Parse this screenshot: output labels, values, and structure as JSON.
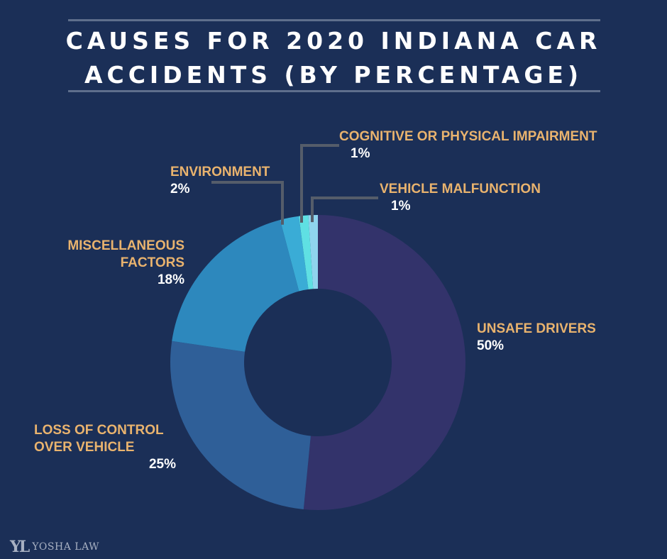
{
  "title": "CAUSES FOR 2020 INDIANA CAR ACCIDENTS (BY PERCENTAGE)",
  "logo": {
    "mark": "YL",
    "text": "YOSHA LAW"
  },
  "chart_data": {
    "type": "pie",
    "title": "CAUSES FOR 2020 INDIANA CAR ACCIDENTS (BY PERCENTAGE)",
    "donut": true,
    "start": "12 o'clock, clockwise",
    "slices": [
      {
        "id": "unsafe",
        "label": "UNSAFE DRIVERS",
        "value": 50,
        "value_label": "50%",
        "color": "#33336b"
      },
      {
        "id": "loss",
        "label": "LOSS OF CONTROL OVER VEHICLE",
        "value": 25,
        "value_label": "25%",
        "color": "#2f5f98"
      },
      {
        "id": "misc",
        "label": "MISCELLANEOUS FACTORS",
        "value": 18,
        "value_label": "18%",
        "color": "#2d88bd"
      },
      {
        "id": "env",
        "label": "ENVIRONMENT",
        "value": 2,
        "value_label": "2%",
        "color": "#3aacd6"
      },
      {
        "id": "cog",
        "label": "COGNITIVE OR PHYSICAL IMPAIRMENT",
        "value": 1,
        "value_label": "1%",
        "color": "#5fe0e3"
      },
      {
        "id": "veh",
        "label": "VEHICLE MALFUNCTION",
        "value": 1,
        "value_label": "1%",
        "color": "#8fd4ee"
      }
    ],
    "label_lines": {
      "unsafe_1": "UNSAFE DRIVERS",
      "loss_1": "LOSS OF CONTROL",
      "loss_2": "OVER VEHICLE",
      "misc_1": "MISCELLANEOUS",
      "misc_2": "FACTORS"
    }
  }
}
